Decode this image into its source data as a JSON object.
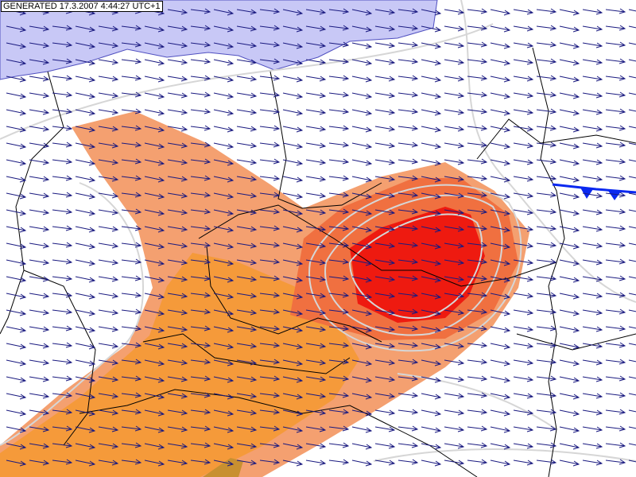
{
  "header": {
    "generated": "GENERATED 17.3.2007 4:44:27 UTC+1"
  }
}
